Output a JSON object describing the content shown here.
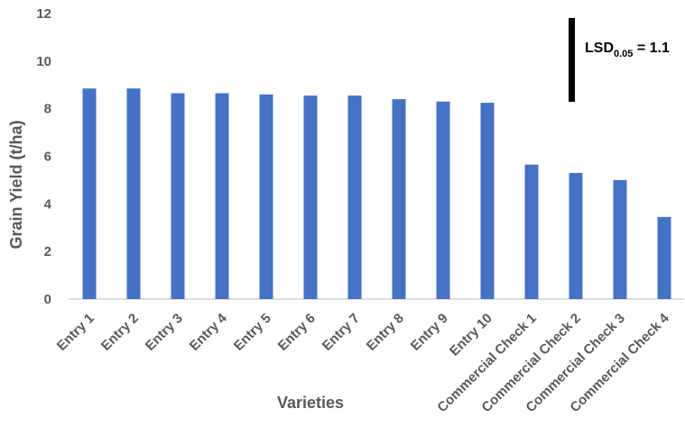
{
  "chart_data": {
    "type": "bar",
    "title": "",
    "xlabel": "Varieties",
    "ylabel": "Grain Yield (t/ha)",
    "ylim": [
      0,
      12
    ],
    "yticks": [
      0,
      2,
      4,
      6,
      8,
      10,
      12
    ],
    "grid": false,
    "legend": "none",
    "bar_color": "#4472C4",
    "axis_color": "#BFBFBF",
    "text_color": "#595959",
    "categories": [
      "Entry 1",
      "Entry 2",
      "Entry 3",
      "Entry 4",
      "Entry 5",
      "Entry 6",
      "Entry 7",
      "Entry 8",
      "Entry 9",
      "Entry 10",
      "Commercial Check 1",
      "Commercial Check 2",
      "Commercial Check 3",
      "Commercial Check 4"
    ],
    "values": [
      8.85,
      8.85,
      8.65,
      8.65,
      8.6,
      8.55,
      8.55,
      8.4,
      8.3,
      8.25,
      5.65,
      5.3,
      5.0,
      3.45
    ],
    "annotation": {
      "label_main": "LSD",
      "label_sub": "0.05",
      "label_rest": " = 1.1",
      "value": 1.1,
      "bar_color": "#000000"
    }
  }
}
